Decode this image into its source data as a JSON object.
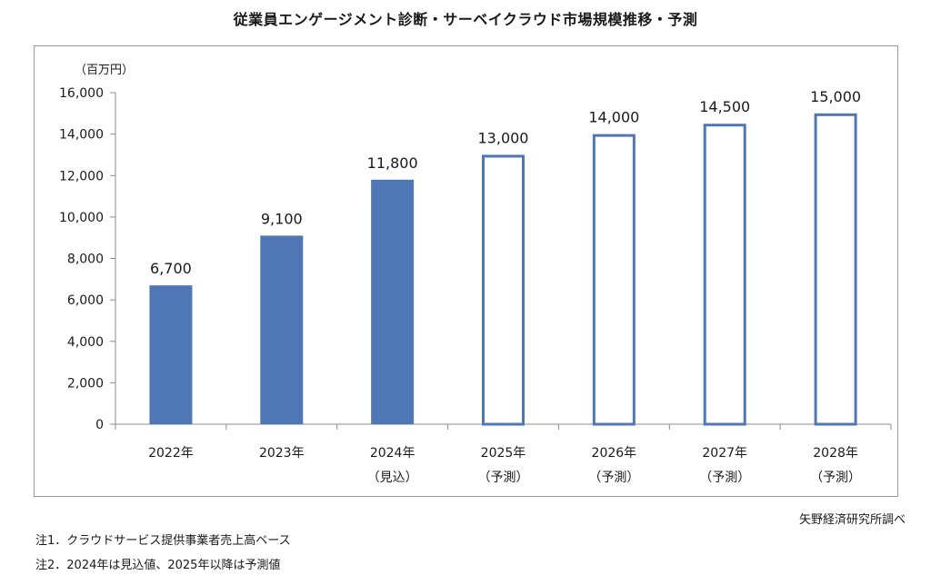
{
  "chart_data": {
    "type": "bar",
    "title": "従業員エンゲージメント診断・サーベイクラウド市場規模推移・予測",
    "unit_label": "（百万円）",
    "categories": [
      {
        "year": "2022年",
        "sub": ""
      },
      {
        "year": "2023年",
        "sub": ""
      },
      {
        "year": "2024年",
        "sub": "（見込）"
      },
      {
        "year": "2025年",
        "sub": "（予測）"
      },
      {
        "year": "2026年",
        "sub": "（予測）"
      },
      {
        "year": "2027年",
        "sub": "（予測）"
      },
      {
        "year": "2028年",
        "sub": "（予測）"
      }
    ],
    "values": [
      6700,
      9100,
      11800,
      13000,
      14000,
      14500,
      15000
    ],
    "value_labels": [
      "6,700",
      "9,100",
      "11,800",
      "13,000",
      "14,000",
      "14,500",
      "15,000"
    ],
    "bar_style": [
      "filled",
      "filled",
      "filled",
      "outline",
      "outline",
      "outline",
      "outline"
    ],
    "ylim": [
      0,
      16000
    ],
    "yticks": [
      0,
      2000,
      4000,
      6000,
      8000,
      10000,
      12000,
      14000,
      16000
    ],
    "ytick_labels": [
      "0",
      "2,000",
      "4,000",
      "6,000",
      "8,000",
      "10,000",
      "12,000",
      "14,000",
      "16,000"
    ],
    "grid": false,
    "colors": {
      "bar": "#4f76b5",
      "outline_fill": "#ffffff",
      "axis": "#8c8c8c"
    }
  },
  "footer": {
    "source": "矢野経済研究所調べ",
    "note1": "注1．クラウドサービス提供事業者売上高ベース",
    "note2": "注2．2024年は見込値、2025年以降は予測値"
  }
}
